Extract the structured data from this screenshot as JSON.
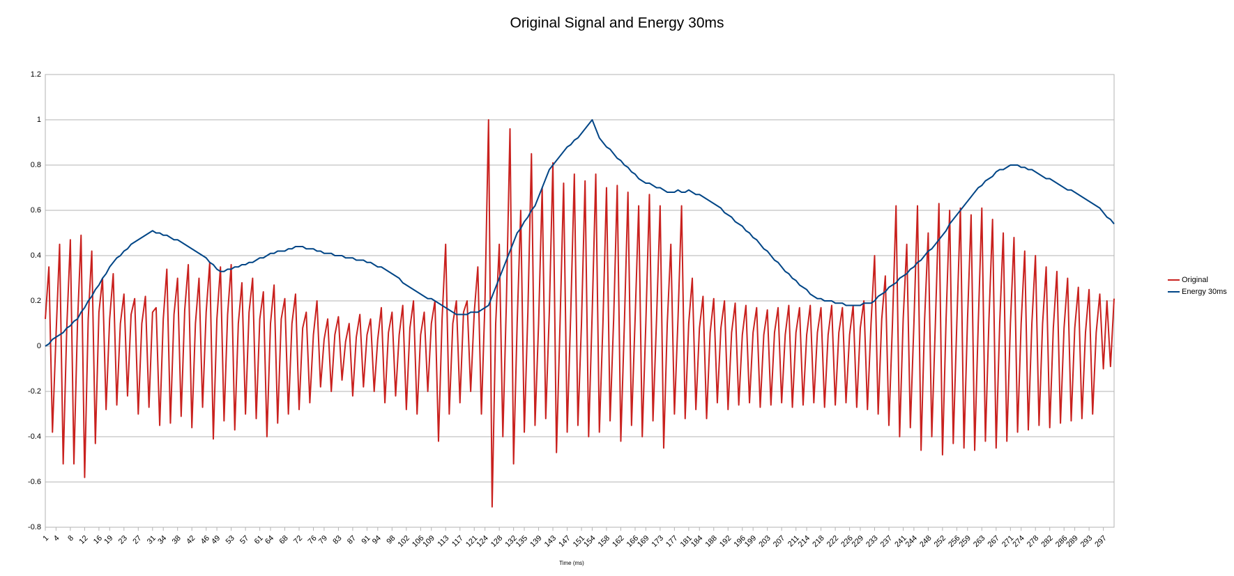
{
  "chart_data": {
    "type": "line",
    "title": "Original Signal and Energy 30ms",
    "x_label": "Time (ms)",
    "x": [
      1,
      2,
      3,
      4,
      5,
      6,
      7,
      8,
      9,
      10,
      11,
      12,
      13,
      14,
      15,
      16,
      17,
      18,
      19,
      20,
      21,
      22,
      23,
      24,
      25,
      26,
      27,
      28,
      29,
      30,
      31,
      32,
      33,
      34,
      35,
      36,
      37,
      38,
      39,
      40,
      41,
      42,
      43,
      44,
      45,
      46,
      47,
      48,
      49,
      50,
      51,
      52,
      53,
      54,
      55,
      56,
      57,
      58,
      59,
      60,
      61,
      62,
      63,
      64,
      65,
      66,
      67,
      68,
      69,
      70,
      71,
      72,
      73,
      74,
      75,
      76,
      77,
      78,
      79,
      80,
      81,
      82,
      83,
      84,
      85,
      86,
      87,
      88,
      89,
      90,
      91,
      92,
      93,
      94,
      95,
      96,
      97,
      98,
      99,
      100,
      101,
      102,
      103,
      104,
      105,
      106,
      107,
      108,
      109,
      110,
      111,
      112,
      113,
      114,
      115,
      116,
      117,
      118,
      119,
      120,
      121,
      122,
      123,
      124,
      125,
      126,
      127,
      128,
      129,
      130,
      131,
      132,
      133,
      134,
      135,
      136,
      137,
      138,
      139,
      140,
      141,
      142,
      143,
      144,
      145,
      146,
      147,
      148,
      149,
      150,
      151,
      152,
      153,
      154,
      155,
      156,
      157,
      158,
      159,
      160,
      161,
      162,
      163,
      164,
      165,
      166,
      167,
      168,
      169,
      170,
      171,
      172,
      173,
      174,
      175,
      176,
      177,
      178,
      179,
      180,
      181,
      182,
      183,
      184,
      185,
      186,
      187,
      188,
      189,
      190,
      191,
      192,
      193,
      194,
      195,
      196,
      197,
      198,
      199,
      200,
      201,
      202,
      203,
      204,
      205,
      206,
      207,
      208,
      209,
      210,
      211,
      212,
      213,
      214,
      215,
      216,
      217,
      218,
      219,
      220,
      221,
      222,
      223,
      224,
      225,
      226,
      227,
      228,
      229,
      230,
      231,
      232,
      233,
      234,
      235,
      236,
      237,
      238,
      239,
      240,
      241,
      242,
      243,
      244,
      245,
      246,
      247,
      248,
      249,
      250,
      251,
      252,
      253,
      254,
      255,
      256,
      257,
      258,
      259,
      260,
      261,
      262,
      263,
      264,
      265,
      266,
      267,
      268,
      269,
      270,
      271,
      272,
      273,
      274,
      275,
      276,
      277,
      278,
      279,
      280,
      281,
      282,
      283,
      284,
      285,
      286,
      287,
      288,
      289,
      290,
      291,
      292,
      293,
      294,
      295,
      296,
      297,
      298,
      299,
      300
    ],
    "series": [
      {
        "name": "Original",
        "color": "#c9211e",
        "values": [
          0.12,
          0.35,
          -0.38,
          0.05,
          0.45,
          -0.52,
          0.08,
          0.47,
          -0.52,
          0.1,
          0.49,
          -0.58,
          0.12,
          0.42,
          -0.43,
          0.15,
          0.3,
          -0.28,
          0.12,
          0.32,
          -0.26,
          0.1,
          0.23,
          -0.22,
          0.14,
          0.21,
          -0.3,
          0.1,
          0.22,
          -0.27,
          0.15,
          0.17,
          -0.35,
          0.12,
          0.34,
          -0.34,
          0.14,
          0.3,
          -0.31,
          0.16,
          0.36,
          -0.36,
          0.1,
          0.3,
          -0.27,
          0.15,
          0.37,
          -0.41,
          0.12,
          0.35,
          -0.33,
          0.14,
          0.36,
          -0.37,
          0.1,
          0.28,
          -0.3,
          0.15,
          0.3,
          -0.32,
          0.12,
          0.24,
          -0.4,
          0.1,
          0.27,
          -0.34,
          0.12,
          0.21,
          -0.3,
          0.1,
          0.23,
          -0.28,
          0.08,
          0.15,
          -0.25,
          0.05,
          0.2,
          -0.18,
          0.03,
          0.12,
          -0.2,
          0.05,
          0.13,
          -0.15,
          0.02,
          0.1,
          -0.22,
          0.04,
          0.14,
          -0.18,
          0.05,
          0.12,
          -0.2,
          0.03,
          0.17,
          -0.25,
          0.06,
          0.15,
          -0.22,
          0.05,
          0.18,
          -0.28,
          0.08,
          0.2,
          -0.3,
          0.05,
          0.15,
          -0.2,
          0.1,
          0.2,
          -0.42,
          0.12,
          0.45,
          -0.3,
          0.1,
          0.2,
          -0.25,
          0.15,
          0.2,
          -0.2,
          0.15,
          0.35,
          -0.3,
          0.2,
          1.0,
          -0.71,
          0.1,
          0.45,
          -0.4,
          0.2,
          0.96,
          -0.52,
          0.1,
          0.6,
          -0.38,
          0.15,
          0.85,
          -0.35,
          0.1,
          0.7,
          -0.32,
          0.15,
          0.81,
          -0.47,
          0.1,
          0.72,
          -0.38,
          0.15,
          0.76,
          -0.35,
          0.1,
          0.73,
          -0.4,
          0.15,
          0.76,
          -0.38,
          0.1,
          0.7,
          -0.33,
          0.12,
          0.71,
          -0.42,
          0.1,
          0.68,
          -0.35,
          0.12,
          0.62,
          -0.4,
          0.1,
          0.67,
          -0.33,
          0.12,
          0.62,
          -0.45,
          0.1,
          0.45,
          -0.3,
          0.12,
          0.62,
          -0.32,
          0.1,
          0.3,
          -0.28,
          0.08,
          0.22,
          -0.32,
          0.06,
          0.21,
          -0.25,
          0.08,
          0.2,
          -0.28,
          0.06,
          0.19,
          -0.26,
          0.05,
          0.18,
          -0.25,
          0.06,
          0.17,
          -0.27,
          0.05,
          0.16,
          -0.26,
          0.06,
          0.17,
          -0.25,
          0.05,
          0.18,
          -0.27,
          0.06,
          0.17,
          -0.26,
          0.05,
          0.18,
          -0.25,
          0.06,
          0.17,
          -0.27,
          0.05,
          0.18,
          -0.26,
          0.06,
          0.17,
          -0.25,
          0.05,
          0.18,
          -0.27,
          0.08,
          0.2,
          -0.28,
          0.1,
          0.4,
          -0.3,
          0.12,
          0.31,
          -0.35,
          0.1,
          0.62,
          -0.4,
          0.12,
          0.45,
          -0.36,
          0.1,
          0.62,
          -0.46,
          0.12,
          0.5,
          -0.4,
          0.1,
          0.63,
          -0.48,
          0.12,
          0.6,
          -0.43,
          0.1,
          0.61,
          -0.45,
          0.12,
          0.58,
          -0.46,
          0.1,
          0.61,
          -0.42,
          0.12,
          0.56,
          -0.45,
          0.1,
          0.5,
          -0.42,
          0.1,
          0.48,
          -0.38,
          0.1,
          0.42,
          -0.37,
          0.1,
          0.4,
          -0.35,
          0.1,
          0.35,
          -0.36,
          0.08,
          0.33,
          -0.34,
          0.08,
          0.3,
          -0.33,
          0.08,
          0.26,
          -0.32,
          0.06,
          0.25,
          -0.3,
          0.06,
          0.23,
          -0.1,
          0.2,
          -0.09,
          0.21
        ]
      },
      {
        "name": "Energy 30ms",
        "color": "#004586",
        "values": [
          0,
          0.01,
          0.03,
          0.04,
          0.05,
          0.06,
          0.08,
          0.09,
          0.11,
          0.12,
          0.15,
          0.17,
          0.2,
          0.22,
          0.25,
          0.27,
          0.3,
          0.32,
          0.35,
          0.37,
          0.39,
          0.4,
          0.42,
          0.43,
          0.45,
          0.46,
          0.47,
          0.48,
          0.49,
          0.5,
          0.51,
          0.5,
          0.5,
          0.49,
          0.49,
          0.48,
          0.47,
          0.47,
          0.46,
          0.45,
          0.44,
          0.43,
          0.42,
          0.41,
          0.4,
          0.39,
          0.37,
          0.36,
          0.34,
          0.33,
          0.33,
          0.34,
          0.34,
          0.35,
          0.35,
          0.36,
          0.36,
          0.37,
          0.37,
          0.38,
          0.39,
          0.39,
          0.4,
          0.41,
          0.41,
          0.42,
          0.42,
          0.42,
          0.43,
          0.43,
          0.44,
          0.44,
          0.44,
          0.43,
          0.43,
          0.43,
          0.42,
          0.42,
          0.41,
          0.41,
          0.41,
          0.4,
          0.4,
          0.4,
          0.39,
          0.39,
          0.39,
          0.38,
          0.38,
          0.38,
          0.37,
          0.37,
          0.36,
          0.35,
          0.35,
          0.34,
          0.33,
          0.32,
          0.31,
          0.3,
          0.28,
          0.27,
          0.26,
          0.25,
          0.24,
          0.23,
          0.22,
          0.21,
          0.21,
          0.2,
          0.19,
          0.18,
          0.17,
          0.16,
          0.15,
          0.14,
          0.14,
          0.14,
          0.14,
          0.15,
          0.15,
          0.15,
          0.16,
          0.17,
          0.18,
          0.22,
          0.26,
          0.3,
          0.34,
          0.38,
          0.42,
          0.46,
          0.5,
          0.52,
          0.55,
          0.57,
          0.6,
          0.62,
          0.66,
          0.7,
          0.74,
          0.78,
          0.8,
          0.82,
          0.84,
          0.86,
          0.88,
          0.89,
          0.91,
          0.92,
          0.94,
          0.96,
          0.98,
          1.0,
          0.96,
          0.92,
          0.9,
          0.88,
          0.87,
          0.85,
          0.83,
          0.82,
          0.8,
          0.79,
          0.77,
          0.76,
          0.74,
          0.73,
          0.72,
          0.72,
          0.71,
          0.7,
          0.7,
          0.69,
          0.68,
          0.68,
          0.68,
          0.69,
          0.68,
          0.68,
          0.69,
          0.68,
          0.67,
          0.67,
          0.66,
          0.65,
          0.64,
          0.63,
          0.62,
          0.61,
          0.59,
          0.58,
          0.57,
          0.55,
          0.54,
          0.53,
          0.51,
          0.5,
          0.48,
          0.47,
          0.45,
          0.43,
          0.42,
          0.4,
          0.38,
          0.37,
          0.35,
          0.33,
          0.32,
          0.3,
          0.29,
          0.27,
          0.26,
          0.25,
          0.23,
          0.22,
          0.21,
          0.21,
          0.2,
          0.2,
          0.2,
          0.19,
          0.19,
          0.19,
          0.18,
          0.18,
          0.18,
          0.18,
          0.18,
          0.19,
          0.19,
          0.19,
          0.2,
          0.22,
          0.23,
          0.24,
          0.26,
          0.27,
          0.28,
          0.3,
          0.31,
          0.32,
          0.34,
          0.35,
          0.37,
          0.38,
          0.4,
          0.42,
          0.43,
          0.45,
          0.47,
          0.49,
          0.51,
          0.54,
          0.56,
          0.58,
          0.6,
          0.62,
          0.64,
          0.66,
          0.68,
          0.7,
          0.71,
          0.73,
          0.74,
          0.75,
          0.77,
          0.78,
          0.78,
          0.79,
          0.8,
          0.8,
          0.8,
          0.79,
          0.79,
          0.78,
          0.78,
          0.77,
          0.76,
          0.75,
          0.74,
          0.74,
          0.73,
          0.72,
          0.71,
          0.7,
          0.69,
          0.69,
          0.68,
          0.67,
          0.66,
          0.65,
          0.64,
          0.63,
          0.62,
          0.61,
          0.59,
          0.57,
          0.56,
          0.54
        ]
      }
    ],
    "xlim": [
      1,
      300
    ],
    "xticks": [
      1,
      4,
      8,
      12,
      16,
      19,
      23,
      27,
      31,
      34,
      38,
      42,
      46,
      49,
      53,
      57,
      61,
      64,
      68,
      72,
      76,
      79,
      83,
      87,
      91,
      94,
      98,
      102,
      106,
      109,
      113,
      117,
      121,
      124,
      128,
      132,
      135,
      139,
      143,
      147,
      151,
      154,
      158,
      162,
      166,
      169,
      173,
      177,
      181,
      184,
      188,
      192,
      196,
      199,
      203,
      207,
      211,
      214,
      218,
      222,
      226,
      229,
      233,
      237,
      241,
      244,
      248,
      252,
      256,
      259,
      263,
      267,
      271,
      274,
      278,
      282,
      286,
      289,
      293,
      297
    ],
    "ylim": [
      -0.8,
      1.2
    ],
    "yticks": [
      -0.8,
      -0.6,
      -0.4,
      -0.2,
      0,
      0.2,
      0.4,
      0.6,
      0.8,
      1,
      1.2
    ],
    "grid": true,
    "legend": "right"
  }
}
